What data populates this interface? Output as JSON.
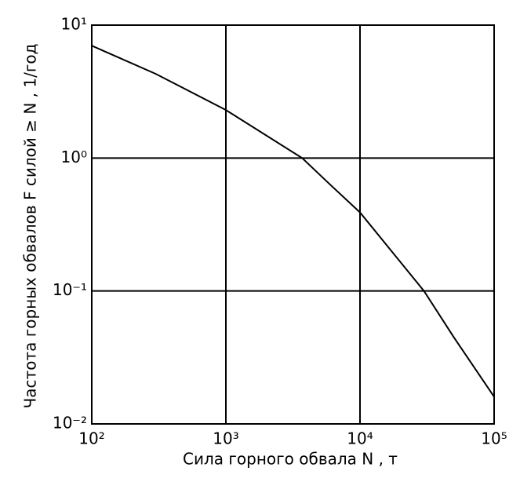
{
  "chart_data": {
    "type": "line",
    "xlabel": "Сила горного обвала N , т",
    "ylabel": "Частота горных обвалов F силой ≥ N , 1/год",
    "xscale": "log",
    "yscale": "log",
    "grid": true,
    "xlim": [
      100,
      100000
    ],
    "ylim": [
      0.01,
      10
    ],
    "xticks": [
      {
        "value": 100,
        "label": "10²"
      },
      {
        "value": 1000,
        "label": "10³"
      },
      {
        "value": 10000,
        "label": "10⁴"
      },
      {
        "value": 100000,
        "label": "10⁵"
      }
    ],
    "yticks": [
      {
        "value": 0.01,
        "label": "10⁻²"
      },
      {
        "value": 0.1,
        "label": "10⁻¹"
      },
      {
        "value": 1,
        "label": "10⁰"
      },
      {
        "value": 10,
        "label": "10¹"
      }
    ],
    "x": [
      100,
      300,
      1000,
      3700,
      6000,
      10000,
      30000,
      50000,
      100000
    ],
    "series": [
      {
        "color": "#000000",
        "values": [
          7,
          4.3,
          2.3,
          1,
          0.63,
          0.39,
          0.1,
          0.045,
          0.016
        ]
      }
    ]
  }
}
